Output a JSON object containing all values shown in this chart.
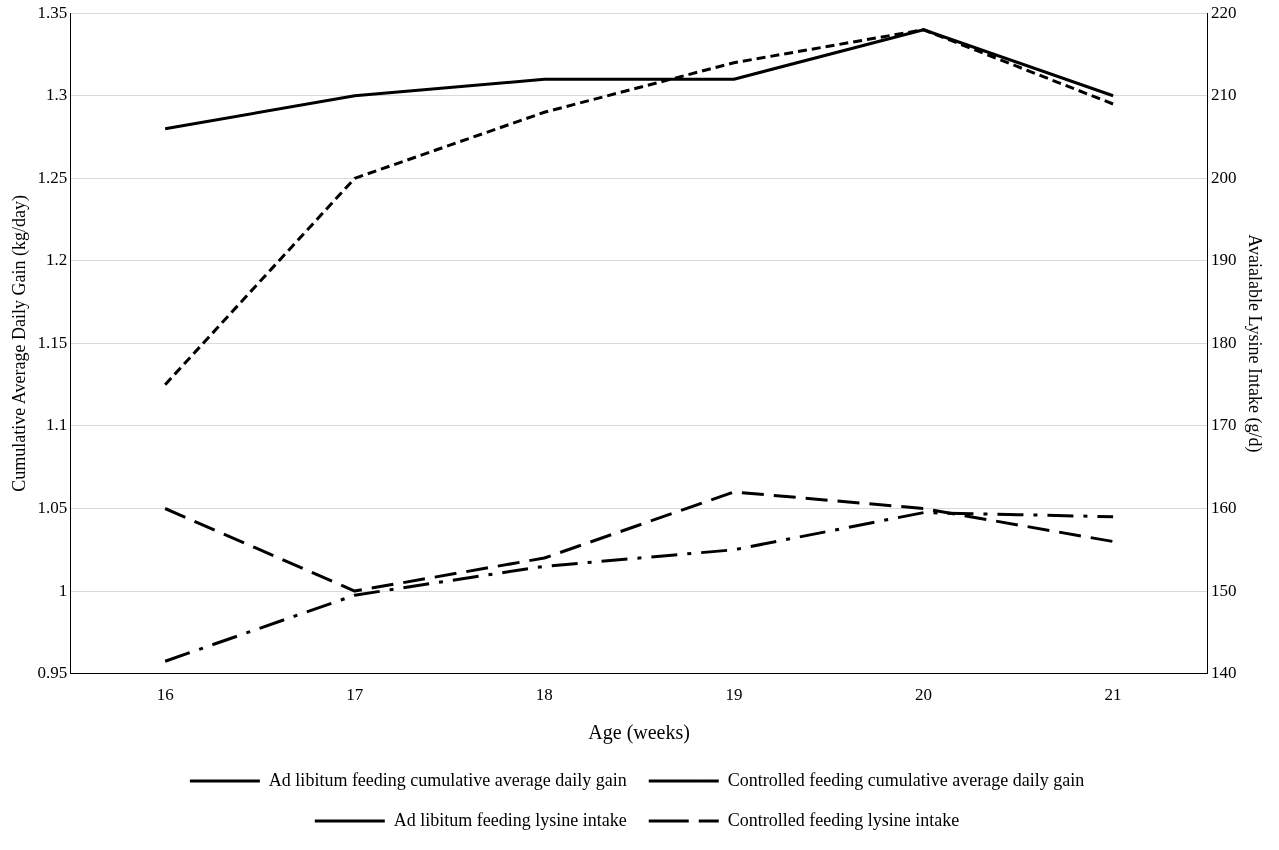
{
  "chart_data": {
    "type": "line",
    "xlabel": "Age (weeks)",
    "ylabel": "Cumulative Average Daily Gain (kg/day)",
    "y2label": "Avaialable Lysine Intake (g/d)",
    "categories": [
      "16",
      "17",
      "18",
      "19",
      "20",
      "21"
    ],
    "series": [
      {
        "name": "Ad libitum feeding cumulative average daily gain",
        "color": "#000000",
        "line_style": "solid",
        "values": [
          1.28,
          1.3,
          1.31,
          1.31,
          1.34,
          1.3
        ]
      },
      {
        "name": "Controlled feeding cumulative average daily gain",
        "color": "#000000",
        "line_style": "dashed",
        "values": [
          1.05,
          1.0,
          1.02,
          1.06,
          1.05,
          1.03
        ]
      },
      {
        "name": "Ad libitum feeding lysine intake",
        "color": "#000000",
        "line_style": "dotted",
        "axis": "y2",
        "values": [
          175,
          200,
          208,
          214,
          218,
          209
        ]
      },
      {
        "name": "Controlled feeding lysine intake",
        "color": "#000000",
        "line_style": "dashdot",
        "axis": "y2",
        "values": [
          141.5,
          149.5,
          153,
          155,
          159.5,
          159
        ]
      }
    ],
    "ylim": [
      0.95,
      1.35
    ],
    "yticks": [
      {
        "value": 0.95,
        "label": "0.95"
      },
      1,
      {
        "value": 1.05,
        "label": "1.05"
      },
      {
        "value": 1.1,
        "label": "1.1"
      },
      {
        "value": 1.15,
        "label": "1.15"
      },
      {
        "value": 1.2,
        "label": "1.2"
      },
      {
        "value": 1.25,
        "label": "1.25"
      },
      {
        "value": 1.3,
        "label": "1.3"
      },
      {
        "value": 1.35,
        "label": "1.35"
      }
    ],
    "y2lim": [
      140,
      220
    ],
    "y2ticks": [
      140,
      150,
      160,
      170,
      180,
      190,
      200,
      210,
      220
    ],
    "grid": "y",
    "legend": "bottom",
    "marker": "none"
  }
}
